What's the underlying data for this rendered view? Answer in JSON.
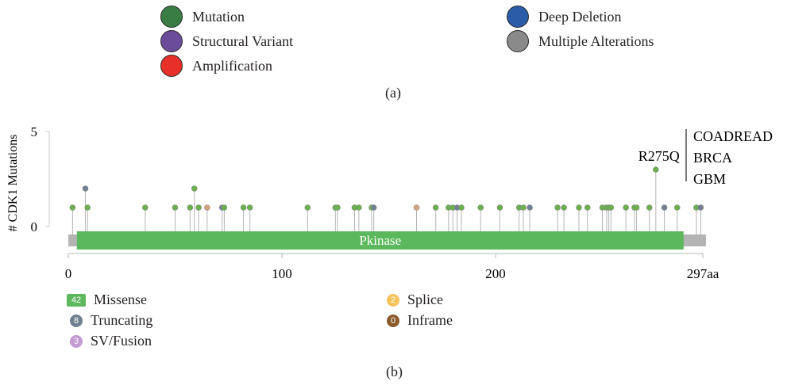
{
  "legend_a": [
    {
      "label": "Mutation",
      "color": "#3a7d44"
    },
    {
      "label": "Structural Variant",
      "color": "#6b4c9a"
    },
    {
      "label": "Amplification",
      "color": "#e8302a"
    },
    {
      "label": "Deep Deletion",
      "color": "#2b5ca8"
    },
    {
      "label": "Multiple Alterations",
      "color": "#8a8a8a"
    }
  ],
  "caption_a": "(a)",
  "caption_b": "(b)",
  "chart_data": {
    "type": "lollipop",
    "ylabel": "# CDK1 Mutations",
    "ylim": [
      0,
      5
    ],
    "yticks": [
      "0",
      "5"
    ],
    "xlim": [
      0,
      297
    ],
    "xticks": [
      "0",
      "100",
      "200",
      "297aa"
    ],
    "xtick_values": [
      0,
      100,
      200,
      297
    ],
    "domain": {
      "name": "Pkinase",
      "start": 4,
      "end": 288,
      "color": "#5cb85c"
    },
    "backbone_color": "#b4b4b4",
    "mutations": [
      {
        "pos": 2,
        "count": 1,
        "type": "missense"
      },
      {
        "pos": 8,
        "count": 2,
        "type": "truncating"
      },
      {
        "pos": 9,
        "count": 1,
        "type": "missense"
      },
      {
        "pos": 36,
        "count": 1,
        "type": "missense"
      },
      {
        "pos": 50,
        "count": 1,
        "type": "missense"
      },
      {
        "pos": 57,
        "count": 1,
        "type": "missense"
      },
      {
        "pos": 59,
        "count": 2,
        "type": "missense"
      },
      {
        "pos": 61,
        "count": 1,
        "type": "missense"
      },
      {
        "pos": 65,
        "count": 1,
        "type": "splice"
      },
      {
        "pos": 72,
        "count": 1,
        "type": "truncating"
      },
      {
        "pos": 73,
        "count": 1,
        "type": "missense"
      },
      {
        "pos": 82,
        "count": 1,
        "type": "missense"
      },
      {
        "pos": 85,
        "count": 1,
        "type": "missense"
      },
      {
        "pos": 112,
        "count": 1,
        "type": "missense"
      },
      {
        "pos": 125,
        "count": 1,
        "type": "missense"
      },
      {
        "pos": 126,
        "count": 1,
        "type": "missense"
      },
      {
        "pos": 134,
        "count": 1,
        "type": "missense"
      },
      {
        "pos": 136,
        "count": 1,
        "type": "missense"
      },
      {
        "pos": 142,
        "count": 1,
        "type": "missense"
      },
      {
        "pos": 143,
        "count": 1,
        "type": "truncating"
      },
      {
        "pos": 163,
        "count": 1,
        "type": "splice"
      },
      {
        "pos": 172,
        "count": 1,
        "type": "missense"
      },
      {
        "pos": 178,
        "count": 1,
        "type": "missense"
      },
      {
        "pos": 180,
        "count": 1,
        "type": "missense"
      },
      {
        "pos": 182,
        "count": 1,
        "type": "truncating"
      },
      {
        "pos": 184,
        "count": 1,
        "type": "missense"
      },
      {
        "pos": 193,
        "count": 1,
        "type": "missense"
      },
      {
        "pos": 202,
        "count": 1,
        "type": "missense"
      },
      {
        "pos": 211,
        "count": 1,
        "type": "missense"
      },
      {
        "pos": 213,
        "count": 1,
        "type": "missense"
      },
      {
        "pos": 216,
        "count": 1,
        "type": "truncating"
      },
      {
        "pos": 229,
        "count": 1,
        "type": "missense"
      },
      {
        "pos": 232,
        "count": 1,
        "type": "missense"
      },
      {
        "pos": 239,
        "count": 1,
        "type": "missense"
      },
      {
        "pos": 243,
        "count": 1,
        "type": "missense"
      },
      {
        "pos": 250,
        "count": 1,
        "type": "missense"
      },
      {
        "pos": 252,
        "count": 1,
        "type": "missense"
      },
      {
        "pos": 253,
        "count": 1,
        "type": "missense"
      },
      {
        "pos": 254,
        "count": 1,
        "type": "missense"
      },
      {
        "pos": 261,
        "count": 1,
        "type": "missense"
      },
      {
        "pos": 265,
        "count": 1,
        "type": "missense"
      },
      {
        "pos": 266,
        "count": 1,
        "type": "missense"
      },
      {
        "pos": 272,
        "count": 1,
        "type": "missense"
      },
      {
        "pos": 275,
        "count": 3,
        "type": "missense"
      },
      {
        "pos": 279,
        "count": 1,
        "type": "truncating"
      },
      {
        "pos": 285,
        "count": 1,
        "type": "missense"
      },
      {
        "pos": 294,
        "count": 1,
        "type": "missense"
      },
      {
        "pos": 296,
        "count": 1,
        "type": "truncating"
      }
    ],
    "annotation": {
      "label": "R275Q",
      "pos": 275,
      "cancers": [
        "COADREAD",
        "BRCA",
        "GBM"
      ]
    },
    "type_colors": {
      "missense": "#6ab04c",
      "truncating": "#708090",
      "splice": "#d2a57f",
      "sv": "#c39bd3",
      "inframe": "#8b5a2b"
    },
    "legend": [
      {
        "label": "Missense",
        "count": "42",
        "shape": "rect",
        "color": "#5cb85c"
      },
      {
        "label": "Truncating",
        "count": "8",
        "shape": "circle",
        "color": "#708090"
      },
      {
        "label": "SV/Fusion",
        "count": "3",
        "shape": "circle",
        "color": "#c39bd3"
      },
      {
        "label": "Splice",
        "count": "2",
        "shape": "circle",
        "color": "#f6c25a"
      },
      {
        "label": "Inframe",
        "count": "0",
        "shape": "circle",
        "color": "#8b5a2b"
      }
    ]
  }
}
